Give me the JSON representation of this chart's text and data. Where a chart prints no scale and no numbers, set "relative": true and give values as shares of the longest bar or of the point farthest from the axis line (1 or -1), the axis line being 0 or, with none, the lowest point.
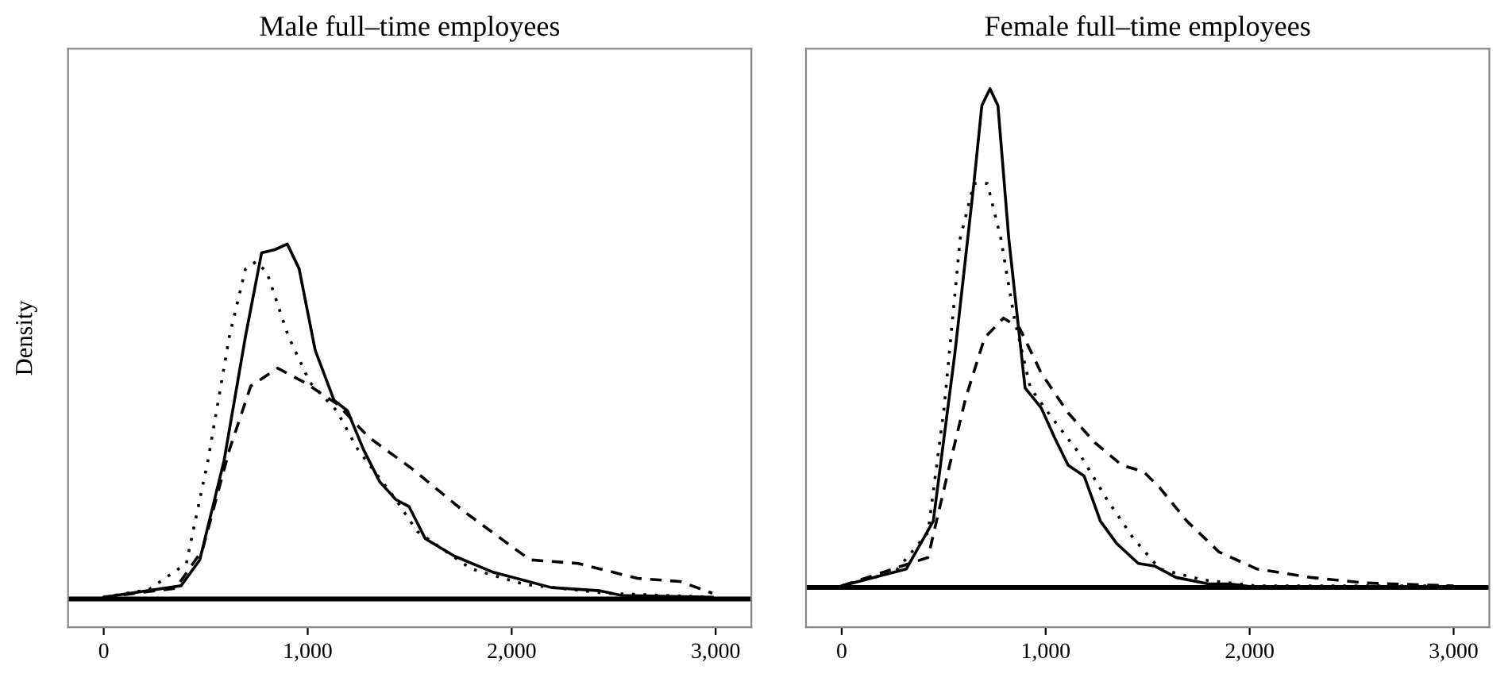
{
  "chart_data": [
    {
      "type": "line",
      "title": "Male full–time employees",
      "ylabel": "Density",
      "relative": true,
      "tick_labels": "x",
      "xlim": [
        -175,
        3175
      ],
      "xticks": [
        0,
        {
          "value": 1000,
          "label": "1,000"
        },
        {
          "value": 2000,
          "label": "2,000"
        },
        {
          "value": 3000,
          "label": "3,000"
        }
      ],
      "grid": false,
      "ref_lines": [
        {
          "axis": "y",
          "value": 0,
          "color": "#000000"
        }
      ],
      "series": [
        {
          "color": "#000000",
          "line_style": "solid",
          "x": [
            0,
            379,
            471,
            590,
            695,
            774,
            839,
            900,
            958,
            1037,
            1129,
            1195,
            1274,
            1353,
            1432,
            1497,
            1576,
            1721,
            1905,
            2195,
            2432,
            2537,
            2984
          ],
          "values": [
            0.005,
            0.037,
            0.11,
            0.39,
            0.74,
            0.975,
            0.984,
            1.0,
            0.93,
            0.7,
            0.56,
            0.53,
            0.42,
            0.33,
            0.28,
            0.26,
            0.17,
            0.12,
            0.076,
            0.032,
            0.023,
            0.01,
            0.005
          ]
        },
        {
          "color": "#000000",
          "line_style": "dotted",
          "x": [
            0,
            221,
            405,
            511,
            616,
            695,
            747,
            800,
            905,
            1011,
            1142,
            1247,
            1432,
            1537,
            1800,
            2063,
            2458,
            2984
          ],
          "values": [
            0.005,
            0.026,
            0.1,
            0.39,
            0.74,
            0.93,
            0.95,
            0.92,
            0.74,
            0.61,
            0.53,
            0.42,
            0.28,
            0.19,
            0.085,
            0.041,
            0.016,
            0.005
          ]
        },
        {
          "color": "#000000",
          "line_style": "dashed",
          "x": [
            0,
            353,
            484,
            616,
            721,
            853,
            984,
            1142,
            1300,
            1511,
            1774,
            2090,
            2326,
            2616,
            2826,
            2984
          ],
          "values": [
            0.005,
            0.03,
            0.138,
            0.42,
            0.6,
            0.65,
            0.61,
            0.55,
            0.455,
            0.367,
            0.243,
            0.11,
            0.1,
            0.058,
            0.049,
            0.016
          ]
        }
      ]
    },
    {
      "type": "line",
      "title": "Female full–time employees",
      "relative": true,
      "tick_labels": "x",
      "xlim": [
        -175,
        3175
      ],
      "xticks": [
        0,
        {
          "value": 1000,
          "label": "1,000"
        },
        {
          "value": 2000,
          "label": "2,000"
        },
        {
          "value": 3000,
          "label": "3,000"
        }
      ],
      "grid": false,
      "ref_lines": [
        {
          "axis": "y",
          "value": 0,
          "color": "#000000"
        }
      ],
      "series": [
        {
          "color": "#000000",
          "line_style": "solid",
          "x": [
            0,
            317,
            449,
            555,
            648,
            687,
            727,
            766,
            819,
            899,
            978,
            1044,
            1110,
            1189,
            1268,
            1348,
            1454,
            1533,
            1639,
            1797,
            1903,
            2035,
            3000
          ],
          "values": [
            0.003,
            0.037,
            0.133,
            0.47,
            0.81,
            0.966,
            1.0,
            0.966,
            0.7,
            0.4,
            0.36,
            0.3,
            0.245,
            0.223,
            0.133,
            0.088,
            0.048,
            0.043,
            0.02,
            0.007,
            0.007,
            0.0,
            0.0
          ]
        },
        {
          "color": "#000000",
          "line_style": "dotted",
          "x": [
            0,
            264,
            423,
            502,
            581,
            648,
            714,
            780,
            846,
            925,
            1031,
            1163,
            1295,
            1427,
            1559,
            1771,
            2035,
            3000
          ],
          "values": [
            0.003,
            0.032,
            0.11,
            0.36,
            0.7,
            0.81,
            0.81,
            0.7,
            0.54,
            0.4,
            0.34,
            0.27,
            0.18,
            0.1,
            0.037,
            0.015,
            0.003,
            0.003
          ]
        },
        {
          "color": "#000000",
          "line_style": "dashed",
          "x": [
            0,
            423,
            529,
            608,
            700,
            793,
            872,
            978,
            1110,
            1242,
            1374,
            1480,
            1559,
            1692,
            1850,
            2035,
            2299,
            2564,
            3000
          ],
          "values": [
            0.003,
            0.06,
            0.245,
            0.38,
            0.5,
            0.54,
            0.52,
            0.43,
            0.35,
            0.29,
            0.245,
            0.232,
            0.2,
            0.133,
            0.071,
            0.037,
            0.02,
            0.009,
            0.003
          ]
        }
      ]
    }
  ]
}
